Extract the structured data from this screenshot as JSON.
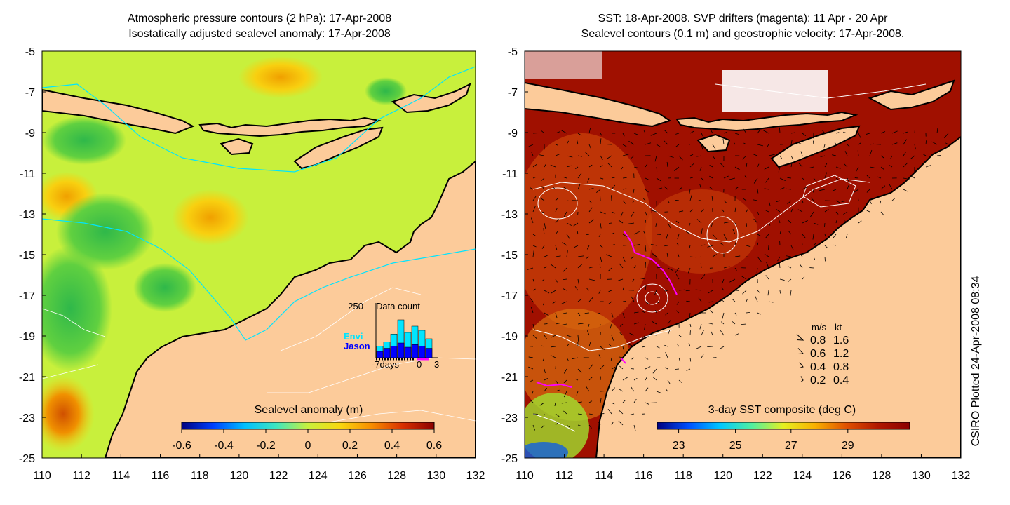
{
  "left_panel": {
    "title_line1": "Atmospheric pressure contours (2 hPa): 17-Apr-2008",
    "title_line2": "Isostatically adjusted sealevel anomaly: 17-Apr-2008",
    "colorbar_label": "Sealevel anomaly (m)",
    "colorbar_ticks": [
      "-0.6",
      "-0.4",
      "-0.2",
      "0",
      "0.2",
      "0.4",
      "0.6"
    ],
    "colorbar_colors": [
      "#00007f",
      "#0040ff",
      "#00bfff",
      "#3fe6bf",
      "#c8f03c",
      "#f8d810",
      "#f78e00",
      "#d83000",
      "#8b0000"
    ],
    "inset": {
      "max_label": "250",
      "title": "Data count",
      "envi_label": "Envi",
      "jason_label": "Jason",
      "x_labels": [
        "-7days",
        "0",
        "3"
      ],
      "envi_color": "#00e5ff",
      "jason_color": "#0000ff",
      "envi_counts": [
        0.22,
        0.3,
        0.45,
        0.72,
        0.48,
        0.6,
        0.52,
        0.36
      ],
      "jason_counts": [
        0.12,
        0.18,
        0.22,
        0.28,
        0.2,
        0.25,
        0.22,
        0.18
      ]
    }
  },
  "right_panel": {
    "title_line1": "SST: 18-Apr-2008. SVP drifters (magenta): 11 Apr - 20 Apr",
    "title_line2": "Sealevel contours (0.1 m) and geostrophic velocity: 17-Apr-2008.",
    "colorbar_label": "3-day SST composite (deg C)",
    "colorbar_ticks": [
      "23",
      "25",
      "27",
      "29"
    ],
    "colorbar_colors": [
      "#00007f",
      "#0050ff",
      "#00c8ff",
      "#50f0a0",
      "#e6f020",
      "#f8b000",
      "#e05000",
      "#b01800",
      "#8b0000"
    ],
    "speed_legend": {
      "header_ms": "m/s",
      "header_kt": "kt",
      "rows": [
        {
          "ms": "0.8",
          "kt": "1.6"
        },
        {
          "ms": "0.6",
          "kt": "1.2"
        },
        {
          "ms": "0.4",
          "kt": "0.8"
        },
        {
          "ms": "0.2",
          "kt": "0.4"
        }
      ]
    }
  },
  "axes": {
    "lat_ticks": [
      "-5",
      "-7",
      "-9",
      "-11",
      "-13",
      "-15",
      "-17",
      "-19",
      "-21",
      "-23",
      "-25"
    ],
    "lon_ticks": [
      "110",
      "112",
      "114",
      "116",
      "118",
      "120",
      "122",
      "124",
      "126",
      "128",
      "130",
      "132"
    ]
  },
  "credit": "CSIRO Plotted 24-Apr-2008 08:34",
  "colors": {
    "land": "#fccb9a",
    "ocean_sla": "#c8f03c",
    "ocean_sst": "#a01000",
    "pressure_contour": "#00e5ff",
    "drifter": "#ff00ff"
  }
}
